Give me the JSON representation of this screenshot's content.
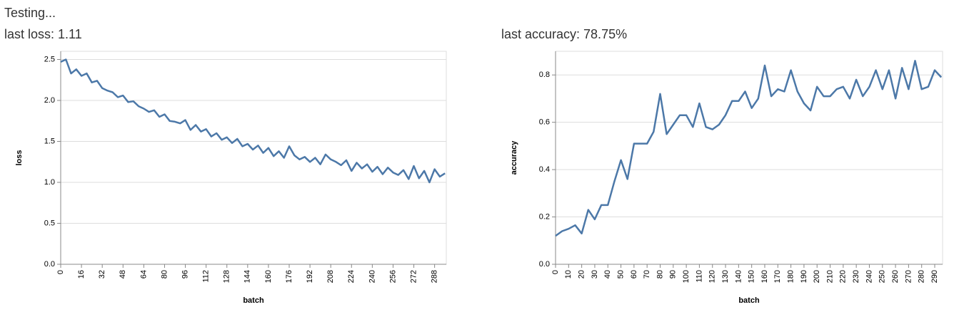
{
  "status": "Testing...",
  "loss_label": "last loss: 1.11",
  "accuracy_label": "last accuracy: 78.75%",
  "chart_data": [
    {
      "type": "line",
      "x_label": "batch",
      "y_label": "loss",
      "color": "#4c78a8",
      "grid": true,
      "x": [
        0,
        4,
        8,
        12,
        16,
        20,
        24,
        28,
        32,
        36,
        40,
        44,
        48,
        52,
        56,
        60,
        64,
        68,
        72,
        76,
        80,
        84,
        88,
        92,
        96,
        100,
        104,
        108,
        112,
        116,
        120,
        124,
        128,
        132,
        136,
        140,
        144,
        148,
        152,
        156,
        160,
        164,
        168,
        172,
        176,
        180,
        184,
        188,
        192,
        196,
        200,
        204,
        208,
        212,
        216,
        220,
        224,
        228,
        232,
        236,
        240,
        244,
        248,
        252,
        256,
        260,
        264,
        268,
        272,
        276,
        280,
        284,
        288,
        292,
        296
      ],
      "values": [
        2.47,
        2.5,
        2.33,
        2.38,
        2.3,
        2.33,
        2.22,
        2.24,
        2.15,
        2.12,
        2.1,
        2.04,
        2.06,
        1.98,
        1.99,
        1.93,
        1.9,
        1.86,
        1.88,
        1.8,
        1.83,
        1.75,
        1.74,
        1.72,
        1.76,
        1.64,
        1.7,
        1.62,
        1.65,
        1.56,
        1.6,
        1.52,
        1.55,
        1.48,
        1.53,
        1.44,
        1.47,
        1.4,
        1.45,
        1.36,
        1.42,
        1.32,
        1.38,
        1.3,
        1.44,
        1.33,
        1.28,
        1.31,
        1.25,
        1.3,
        1.22,
        1.34,
        1.28,
        1.25,
        1.21,
        1.27,
        1.14,
        1.24,
        1.17,
        1.22,
        1.13,
        1.19,
        1.1,
        1.18,
        1.12,
        1.09,
        1.15,
        1.04,
        1.2,
        1.05,
        1.14,
        1.0,
        1.16,
        1.07,
        1.11
      ],
      "xlim": [
        0,
        297
      ],
      "xticks": [
        0,
        16,
        32,
        48,
        64,
        80,
        96,
        112,
        128,
        144,
        160,
        176,
        192,
        208,
        224,
        240,
        256,
        272,
        288
      ],
      "ylim": [
        0,
        2.6
      ],
      "yticks": [
        {
          "value": 0,
          "label": "0.0"
        },
        0.5,
        {
          "value": 1,
          "label": "1.0"
        },
        1.5,
        {
          "value": 2,
          "label": "2.0"
        },
        2.5
      ]
    },
    {
      "type": "line",
      "x_label": "batch",
      "y_label": "accuracy",
      "color": "#4c78a8",
      "grid": true,
      "x": [
        0,
        5,
        10,
        15,
        20,
        25,
        30,
        35,
        40,
        45,
        50,
        55,
        60,
        65,
        70,
        75,
        80,
        85,
        90,
        95,
        100,
        105,
        110,
        115,
        120,
        125,
        130,
        135,
        140,
        145,
        150,
        155,
        160,
        165,
        170,
        175,
        180,
        185,
        190,
        195,
        200,
        205,
        210,
        215,
        220,
        225,
        230,
        235,
        240,
        245,
        250,
        255,
        260,
        265,
        270,
        275,
        280,
        285,
        290,
        295
      ],
      "values": [
        0.12,
        0.14,
        0.15,
        0.165,
        0.13,
        0.23,
        0.19,
        0.25,
        0.25,
        0.35,
        0.44,
        0.36,
        0.51,
        0.51,
        0.51,
        0.56,
        0.72,
        0.55,
        0.59,
        0.63,
        0.63,
        0.58,
        0.68,
        0.58,
        0.57,
        0.59,
        0.63,
        0.69,
        0.69,
        0.73,
        0.66,
        0.7,
        0.84,
        0.71,
        0.74,
        0.73,
        0.82,
        0.73,
        0.68,
        0.65,
        0.75,
        0.71,
        0.71,
        0.74,
        0.75,
        0.7,
        0.78,
        0.71,
        0.75,
        0.82,
        0.74,
        0.82,
        0.7,
        0.83,
        0.74,
        0.86,
        0.74,
        0.75,
        0.82,
        0.79
      ],
      "xlim": [
        0,
        296
      ],
      "xticks": [
        0,
        10,
        20,
        30,
        40,
        50,
        60,
        70,
        80,
        90,
        100,
        110,
        120,
        130,
        140,
        150,
        160,
        170,
        180,
        190,
        200,
        210,
        220,
        230,
        240,
        250,
        260,
        270,
        280,
        290
      ],
      "ylim": [
        0,
        0.9
      ],
      "yticks": [
        {
          "value": 0,
          "label": "0.0"
        },
        0.2,
        0.4,
        0.6,
        0.8
      ]
    }
  ]
}
